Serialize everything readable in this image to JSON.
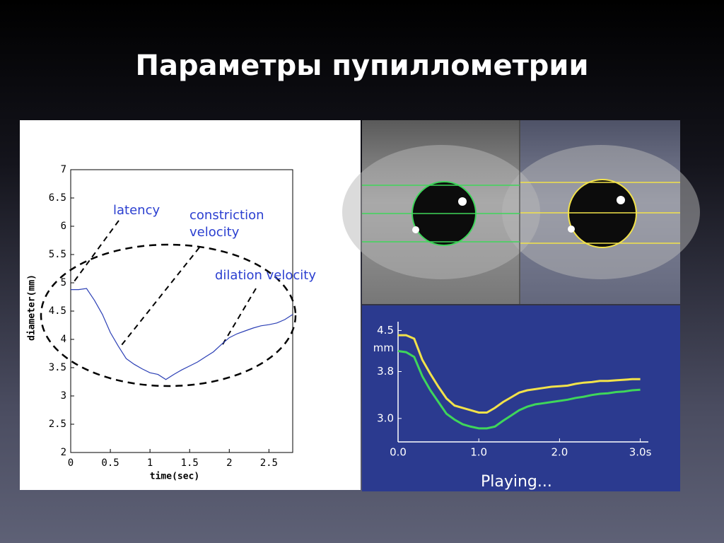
{
  "title": "Параметры пупиллометрии",
  "chart_data": [
    {
      "type": "line",
      "xlabel": "time(sec)",
      "ylabel": "diameter(mm)",
      "annotations": [
        "latency",
        "constriction\nvelocity",
        "dilation velocity"
      ],
      "xlim": [
        0,
        2.8
      ],
      "ylim": [
        2,
        7
      ],
      "xticks": [
        0,
        0.5,
        1,
        1.5,
        2,
        2.5
      ],
      "yticks": [
        2,
        2.5,
        3,
        3.5,
        4,
        4.5,
        5,
        5.5,
        6,
        6.5,
        7
      ],
      "x": [
        0,
        0.1,
        0.2,
        0.3,
        0.4,
        0.5,
        0.6,
        0.7,
        0.8,
        0.9,
        1.0,
        1.1,
        1.2,
        1.3,
        1.4,
        1.5,
        1.6,
        1.7,
        1.8,
        1.9,
        2.0,
        2.1,
        2.2,
        2.3,
        2.4,
        2.5,
        2.6,
        2.7,
        2.8
      ],
      "series": [
        {
          "color": "#2b3fb5",
          "values": [
            4.88,
            4.88,
            4.9,
            4.69,
            4.44,
            4.12,
            3.88,
            3.66,
            3.56,
            3.48,
            3.41,
            3.38,
            3.29,
            3.38,
            3.46,
            3.53,
            3.6,
            3.69,
            3.78,
            3.91,
            4.03,
            4.1,
            4.15,
            4.2,
            4.24,
            4.26,
            4.29,
            4.35,
            4.44
          ]
        }
      ]
    },
    {
      "type": "line",
      "yunit": "mm",
      "status": "Playing...",
      "xlim": [
        0,
        3.1
      ],
      "ylim": [
        2.6,
        4.65
      ],
      "xticks": [
        {
          "value": 0,
          "label": "0.0"
        },
        {
          "value": 1,
          "label": "1.0"
        },
        {
          "value": 2,
          "label": "2.0"
        },
        {
          "value": 3,
          "label": "3.0s"
        }
      ],
      "yticks": [
        {
          "value": 3,
          "label": "3.0"
        },
        3.8,
        4.5
      ],
      "x": [
        0,
        0.1,
        0.2,
        0.3,
        0.4,
        0.5,
        0.6,
        0.7,
        0.8,
        0.9,
        1.0,
        1.1,
        1.2,
        1.3,
        1.4,
        1.5,
        1.6,
        1.7,
        1.8,
        1.9,
        2.0,
        2.1,
        2.2,
        2.3,
        2.4,
        2.5,
        2.6,
        2.7,
        2.8,
        2.9,
        3.0
      ],
      "series": [
        {
          "color": "#f2e24a",
          "values": [
            4.42,
            4.42,
            4.36,
            4.0,
            3.76,
            3.54,
            3.34,
            3.22,
            3.18,
            3.14,
            3.1,
            3.1,
            3.18,
            3.28,
            3.36,
            3.44,
            3.48,
            3.5,
            3.52,
            3.54,
            3.55,
            3.56,
            3.59,
            3.61,
            3.62,
            3.64,
            3.64,
            3.65,
            3.66,
            3.67,
            3.67
          ]
        },
        {
          "color": "#3fd65a",
          "values": [
            4.15,
            4.13,
            4.05,
            3.72,
            3.48,
            3.28,
            3.08,
            2.98,
            2.9,
            2.86,
            2.83,
            2.83,
            2.86,
            2.96,
            3.05,
            3.14,
            3.2,
            3.24,
            3.26,
            3.28,
            3.3,
            3.32,
            3.35,
            3.37,
            3.4,
            3.42,
            3.43,
            3.45,
            3.46,
            3.48,
            3.49
          ]
        }
      ]
    }
  ]
}
